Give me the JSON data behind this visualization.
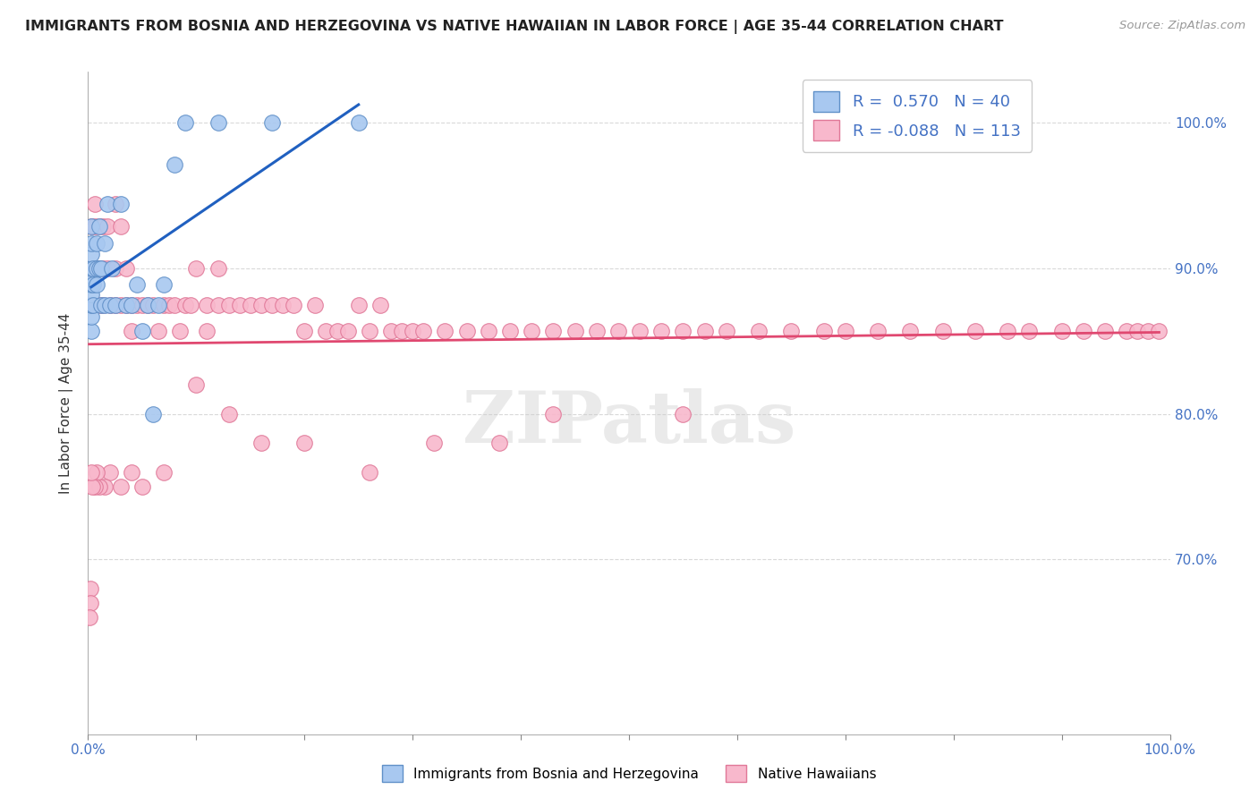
{
  "title": "IMMIGRANTS FROM BOSNIA AND HERZEGOVINA VS NATIVE HAWAIIAN IN LABOR FORCE | AGE 35-44 CORRELATION CHART",
  "source": "Source: ZipAtlas.com",
  "ylabel": "In Labor Force | Age 35-44",
  "xlim": [
    0.0,
    1.0
  ],
  "ylim": [
    0.58,
    1.035
  ],
  "yticks": [
    0.7,
    0.8,
    0.9,
    1.0
  ],
  "ytick_labels_right": [
    "70.0%",
    "80.0%",
    "90.0%",
    "100.0%"
  ],
  "xticks": [
    0.0,
    0.1,
    0.2,
    0.3,
    0.4,
    0.5,
    0.6,
    0.7,
    0.8,
    0.9,
    1.0
  ],
  "xtick_labels": [
    "0.0%",
    "",
    "",
    "",
    "",
    "",
    "",
    "",
    "",
    "",
    "100.0%"
  ],
  "bosnia_color": "#a8c8f0",
  "hawaii_color": "#f8b8cc",
  "bosnia_edge": "#6090c8",
  "hawaii_edge": "#e07898",
  "bosnia_line_color": "#2060c0",
  "hawaii_line_color": "#e04870",
  "legend_R_bosnia": "0.570",
  "legend_N_bosnia": "40",
  "legend_R_hawaii": "-0.088",
  "legend_N_hawaii": "113",
  "background_color": "#ffffff",
  "grid_color": "#d0d0d0",
  "tick_color": "#4472c4",
  "axis_color": "#888888",
  "watermark": "ZIPatlas",
  "bosnia_x": [
    0.003,
    0.003,
    0.003,
    0.003,
    0.003,
    0.003,
    0.003,
    0.003,
    0.003,
    0.003,
    0.005,
    0.005,
    0.005,
    0.008,
    0.008,
    0.008,
    0.01,
    0.01,
    0.012,
    0.012,
    0.015,
    0.015,
    0.018,
    0.02,
    0.022,
    0.025,
    0.03,
    0.035,
    0.04,
    0.045,
    0.05,
    0.055,
    0.06,
    0.065,
    0.07,
    0.08,
    0.09,
    0.12,
    0.17,
    0.25
  ],
  "bosnia_y": [
    0.857,
    0.867,
    0.875,
    0.882,
    0.889,
    0.895,
    0.9,
    0.91,
    0.917,
    0.929,
    0.875,
    0.889,
    0.9,
    0.889,
    0.9,
    0.917,
    0.9,
    0.929,
    0.875,
    0.9,
    0.875,
    0.917,
    0.944,
    0.875,
    0.9,
    0.875,
    0.944,
    0.875,
    0.875,
    0.889,
    0.857,
    0.875,
    0.8,
    0.875,
    0.889,
    0.971,
    1.0,
    1.0,
    1.0,
    1.0
  ],
  "hawaii_x": [
    0.003,
    0.003,
    0.003,
    0.006,
    0.006,
    0.006,
    0.01,
    0.01,
    0.01,
    0.014,
    0.014,
    0.014,
    0.018,
    0.018,
    0.02,
    0.025,
    0.025,
    0.025,
    0.03,
    0.03,
    0.035,
    0.035,
    0.04,
    0.04,
    0.045,
    0.05,
    0.055,
    0.06,
    0.065,
    0.07,
    0.075,
    0.08,
    0.085,
    0.09,
    0.095,
    0.1,
    0.11,
    0.11,
    0.12,
    0.12,
    0.13,
    0.14,
    0.15,
    0.16,
    0.17,
    0.18,
    0.19,
    0.2,
    0.21,
    0.22,
    0.23,
    0.24,
    0.25,
    0.26,
    0.27,
    0.28,
    0.29,
    0.3,
    0.31,
    0.33,
    0.35,
    0.37,
    0.39,
    0.41,
    0.43,
    0.45,
    0.47,
    0.49,
    0.51,
    0.53,
    0.55,
    0.57,
    0.59,
    0.62,
    0.65,
    0.68,
    0.7,
    0.73,
    0.76,
    0.79,
    0.82,
    0.85,
    0.87,
    0.9,
    0.92,
    0.94,
    0.96,
    0.97,
    0.98,
    0.99,
    0.55,
    0.43,
    0.38,
    0.32,
    0.26,
    0.2,
    0.16,
    0.13,
    0.1,
    0.07,
    0.05,
    0.04,
    0.03,
    0.02,
    0.015,
    0.01,
    0.008,
    0.006,
    0.004,
    0.003,
    0.002,
    0.002,
    0.001
  ],
  "hawaii_y": [
    0.929,
    0.9,
    0.875,
    0.944,
    0.929,
    0.9,
    0.929,
    0.9,
    0.875,
    0.929,
    0.9,
    0.875,
    0.929,
    0.9,
    0.875,
    0.944,
    0.9,
    0.875,
    0.929,
    0.875,
    0.9,
    0.875,
    0.875,
    0.857,
    0.875,
    0.875,
    0.875,
    0.875,
    0.857,
    0.875,
    0.875,
    0.875,
    0.857,
    0.875,
    0.875,
    0.9,
    0.875,
    0.857,
    0.9,
    0.875,
    0.875,
    0.875,
    0.875,
    0.875,
    0.875,
    0.875,
    0.875,
    0.857,
    0.875,
    0.857,
    0.857,
    0.857,
    0.875,
    0.857,
    0.875,
    0.857,
    0.857,
    0.857,
    0.857,
    0.857,
    0.857,
    0.857,
    0.857,
    0.857,
    0.857,
    0.857,
    0.857,
    0.857,
    0.857,
    0.857,
    0.857,
    0.857,
    0.857,
    0.857,
    0.857,
    0.857,
    0.857,
    0.857,
    0.857,
    0.857,
    0.857,
    0.857,
    0.857,
    0.857,
    0.857,
    0.857,
    0.857,
    0.857,
    0.857,
    0.857,
    0.8,
    0.8,
    0.78,
    0.78,
    0.76,
    0.78,
    0.78,
    0.8,
    0.82,
    0.76,
    0.75,
    0.76,
    0.75,
    0.76,
    0.75,
    0.75,
    0.76,
    0.75,
    0.75,
    0.76,
    0.68,
    0.67,
    0.66
  ]
}
